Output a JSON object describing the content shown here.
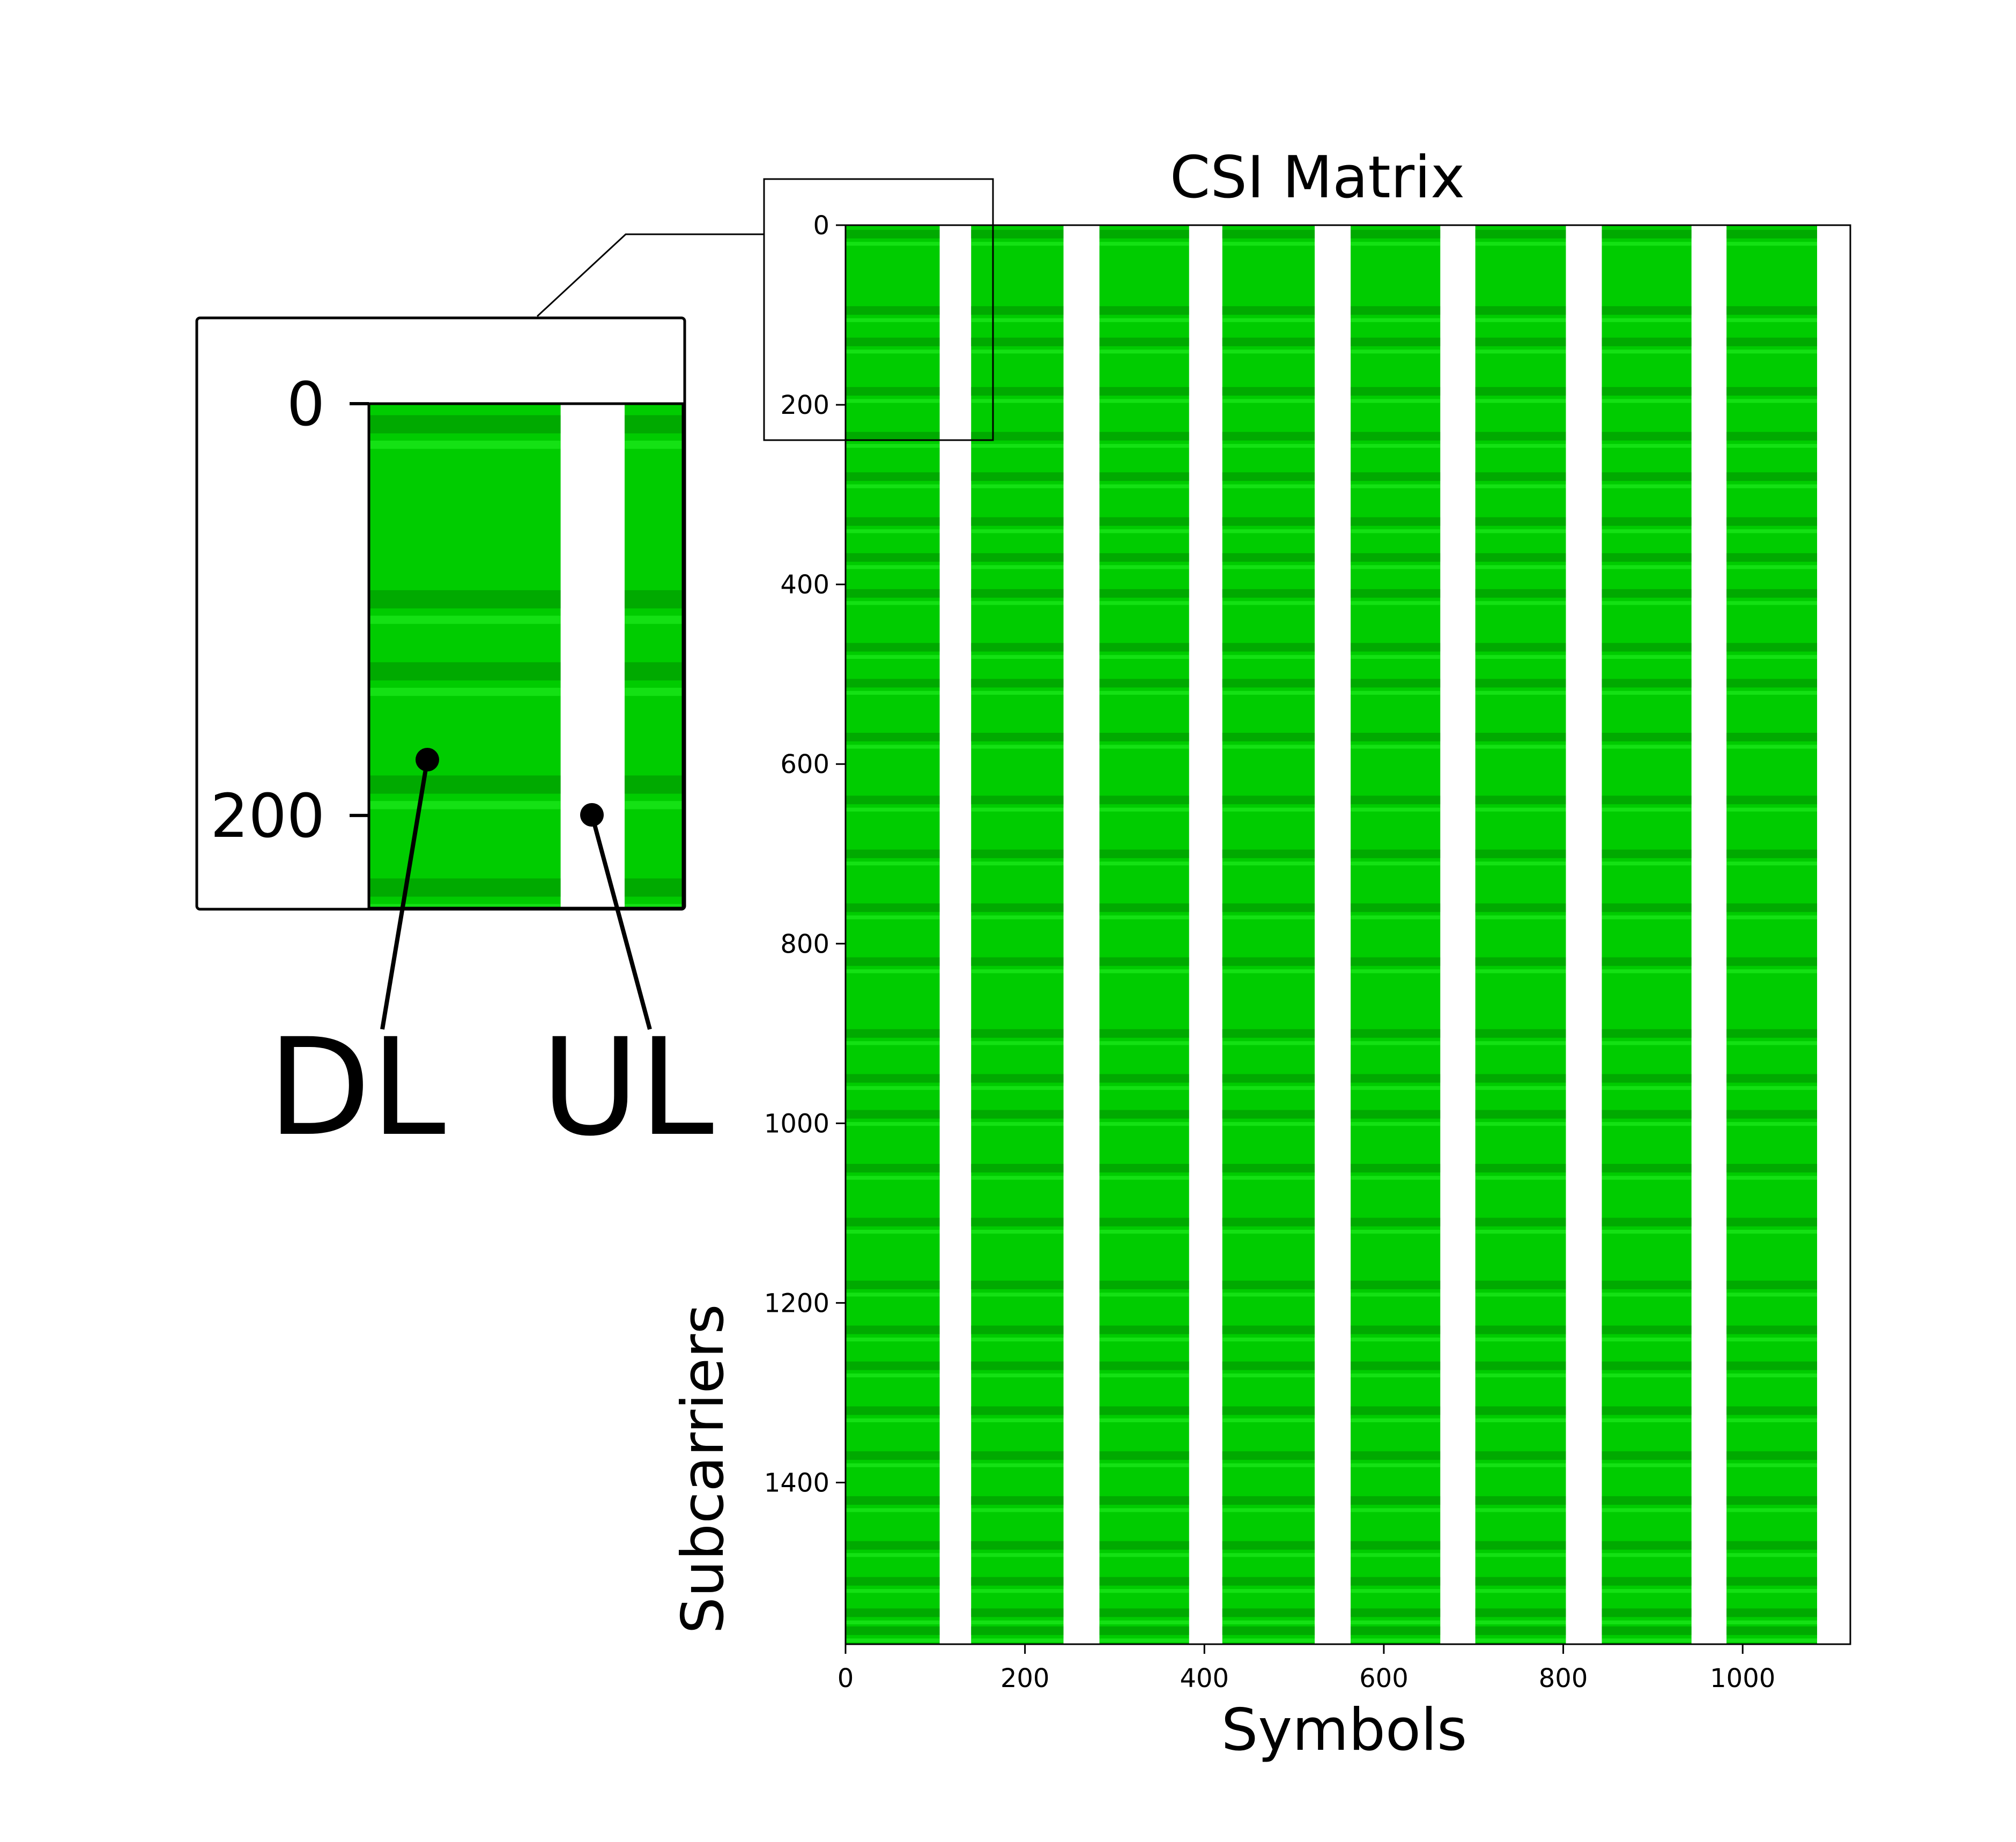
{
  "chart_data": [
    {
      "type": "heatmap",
      "title": "CSI Matrix",
      "xlabel": "Symbols",
      "ylabel": "Subcarriers",
      "xlim": [
        0,
        1120
      ],
      "ylim": [
        1580,
        0
      ],
      "x_ticks": [
        "0",
        "200",
        "400",
        "600",
        "800",
        "1000"
      ],
      "y_ticks": [
        "0",
        "200",
        "400",
        "600",
        "800",
        "1000",
        "1200",
        "1400"
      ],
      "slots": [
        {
          "kind": "DL",
          "x": [
            0,
            105
          ]
        },
        {
          "kind": "UL",
          "x": [
            105,
            140
          ]
        },
        {
          "kind": "DL",
          "x": [
            140,
            243
          ]
        },
        {
          "kind": "UL",
          "x": [
            243,
            283
          ]
        },
        {
          "kind": "DL",
          "x": [
            283,
            383
          ]
        },
        {
          "kind": "UL",
          "x": [
            383,
            420
          ]
        },
        {
          "kind": "DL",
          "x": [
            420,
            523
          ]
        },
        {
          "kind": "UL",
          "x": [
            523,
            563
          ]
        },
        {
          "kind": "DL",
          "x": [
            563,
            663
          ]
        },
        {
          "kind": "UL",
          "x": [
            663,
            702
          ]
        },
        {
          "kind": "DL",
          "x": [
            702,
            803
          ]
        },
        {
          "kind": "UL",
          "x": [
            803,
            843
          ]
        },
        {
          "kind": "DL",
          "x": [
            843,
            943
          ]
        },
        {
          "kind": "UL",
          "x": [
            943,
            982
          ]
        },
        {
          "kind": "DL",
          "x": [
            982,
            1083
          ]
        },
        {
          "kind": "UL",
          "x": [
            1083,
            1120
          ]
        }
      ],
      "dark_bands": [
        10,
        95,
        130,
        185,
        235,
        280,
        330,
        370,
        410,
        470,
        510,
        570,
        640,
        700,
        760,
        820,
        900,
        950,
        990,
        1050,
        1110,
        1180,
        1230,
        1270,
        1320,
        1370,
        1420,
        1470,
        1510,
        1545,
        1565
      ],
      "colors": {
        "DL": "#00cc00",
        "DL_dark": "#009f00",
        "DL_light": "#22ee22",
        "UL": "#ffffff"
      }
    },
    {
      "type": "heatmap",
      "title": "",
      "xlim": [
        0,
        172
      ],
      "ylim": [
        245,
        0
      ],
      "y_ticks": [
        "0",
        "200"
      ],
      "annotations": [
        "DL",
        "UL"
      ]
    }
  ]
}
